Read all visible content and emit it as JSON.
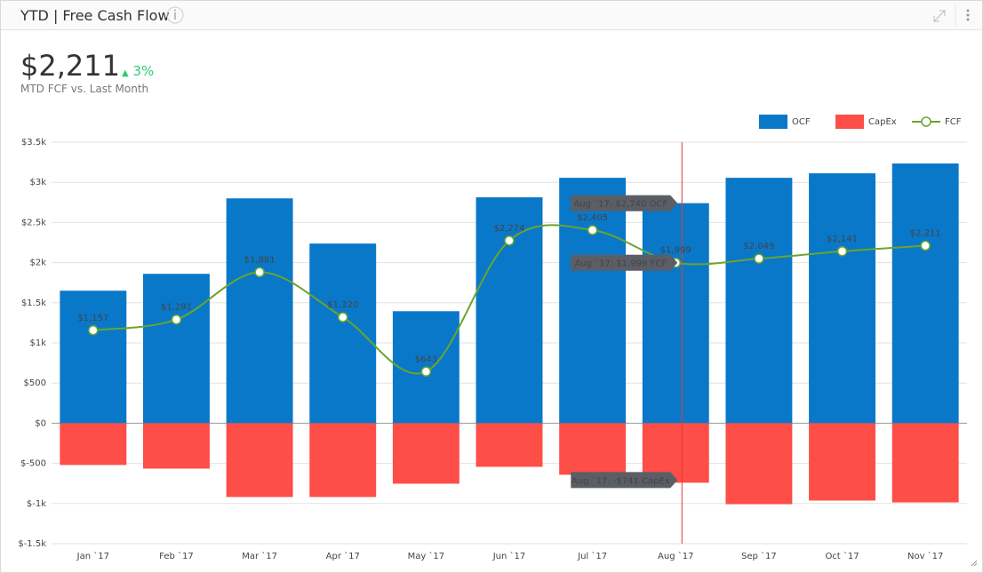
{
  "header": {
    "title": "YTD | Free Cash Flow",
    "kpi": "$2,211",
    "change": "3%",
    "subtitle": "MTD FCF vs. Last Month"
  },
  "chart_data": {
    "type": "bar",
    "categories": [
      "Jan `17",
      "Feb `17",
      "Mar `17",
      "Apr `17",
      "May `17",
      "Jun `17",
      "Jul `17",
      "Aug `17",
      "Sep `17",
      "Oct `17",
      "Nov `17"
    ],
    "series": [
      {
        "name": "OCF",
        "type": "bar",
        "color": "#0a78c9",
        "values": [
          1650,
          1860,
          2800,
          2237,
          1395,
          2813,
          3056,
          2740,
          3056,
          3112,
          3234
        ]
      },
      {
        "name": "CapEx",
        "type": "bar",
        "color": "#fd4e47",
        "values": [
          -520,
          -565,
          -919,
          -919,
          -753,
          -543,
          -642,
          -741,
          -1008,
          -963,
          -986
        ]
      },
      {
        "name": "FCF",
        "type": "line",
        "color": "#6aa52c",
        "values": [
          1157,
          1291,
          1881,
          1320,
          643,
          2274,
          2405,
          1999,
          2049,
          2141,
          2211
        ],
        "value_labels": [
          "$1,157",
          "$1,291",
          "$1,881",
          "$1,320",
          "$643",
          "$2,274",
          "$2,405",
          "$1,999",
          "$2,049",
          "$2,141",
          "$2,211"
        ]
      }
    ],
    "ylim": [
      -1500,
      3500
    ],
    "yticks": [
      {
        "value": -1500,
        "label": "$-1.5k"
      },
      {
        "value": -1000,
        "label": "$-1k"
      },
      {
        "value": -500,
        "label": "$-500"
      },
      {
        "value": 0,
        "label": "$0"
      },
      {
        "value": 500,
        "label": "$500"
      },
      {
        "value": 1000,
        "label": "$1k"
      },
      {
        "value": 1500,
        "label": "$1.5k"
      },
      {
        "value": 2000,
        "label": "$2k"
      },
      {
        "value": 2500,
        "label": "$2.5k"
      },
      {
        "value": 3000,
        "label": "$3k"
      },
      {
        "value": 3500,
        "label": "$3.5k"
      }
    ],
    "grid": true,
    "legend": "top-right",
    "tooltips": [
      "Aug `17: $2,740 OCF",
      "Aug `17: $1,999 FCF",
      "Aug `17: -$741 CapEx"
    ]
  }
}
